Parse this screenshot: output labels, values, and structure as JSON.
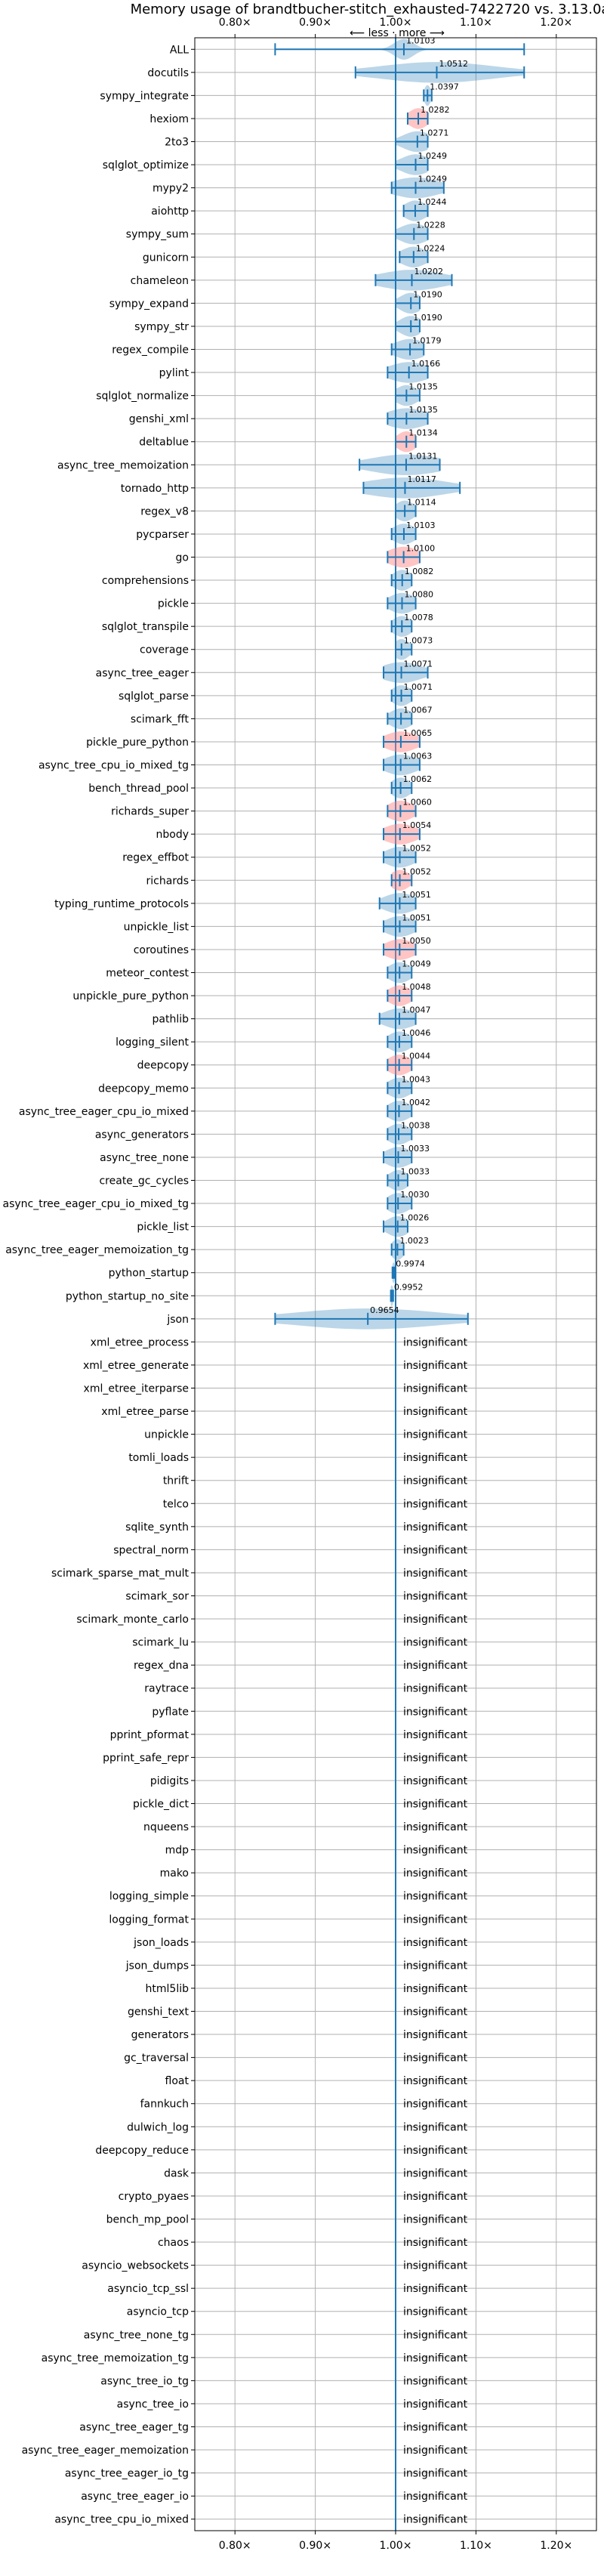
{
  "chart_data": {
    "type": "violin",
    "title": "Memory usage of brandtbucher-stitch_exhausted-7422720 vs. 3.13.0a",
    "direction_note": "⟵ less · more ⟶",
    "xlim": [
      0.75,
      1.25
    ],
    "xticks": [
      {
        "value": 0.8,
        "label": "0.80×"
      },
      {
        "value": 0.9,
        "label": "0.90×"
      },
      {
        "value": 1.0,
        "label": "1.00×"
      },
      {
        "value": 1.1,
        "label": "1.10×"
      },
      {
        "value": 1.2,
        "label": "1.20×"
      }
    ],
    "grid": true,
    "insignificant_text": "insignificant",
    "colors": {
      "normal": "#1f77b4",
      "highlight": "#ff7f7f",
      "grid": "#b0b0b0"
    },
    "rows": [
      {
        "name": "ALL",
        "value": 1.0103,
        "label": "1.0103",
        "min": 0.85,
        "max": 1.16,
        "spread": 0.012,
        "hl": false
      },
      {
        "name": "docutils",
        "value": 1.0512,
        "label": "1.0512",
        "min": 0.95,
        "max": 1.16,
        "spread": 0.07,
        "hl": false
      },
      {
        "name": "sympy_integrate",
        "value": 1.0397,
        "label": "1.0397",
        "min": 1.035,
        "max": 1.045,
        "spread": 0.004,
        "hl": false
      },
      {
        "name": "hexiom",
        "value": 1.0282,
        "label": "1.0282",
        "min": 1.015,
        "max": 1.04,
        "spread": 0.012,
        "hl": true
      },
      {
        "name": "2to3",
        "value": 1.0271,
        "label": "1.0271",
        "min": 1.0,
        "max": 1.04,
        "spread": 0.018,
        "hl": false
      },
      {
        "name": "sqlglot_optimize",
        "value": 1.0249,
        "label": "1.0249",
        "min": 1.0,
        "max": 1.04,
        "spread": 0.018,
        "hl": false
      },
      {
        "name": "mypy2",
        "value": 1.0249,
        "label": "1.0249",
        "min": 0.995,
        "max": 1.06,
        "spread": 0.03,
        "hl": false
      },
      {
        "name": "aiohttp",
        "value": 1.0244,
        "label": "1.0244",
        "min": 1.01,
        "max": 1.04,
        "spread": 0.014,
        "hl": false
      },
      {
        "name": "sympy_sum",
        "value": 1.0228,
        "label": "1.0228",
        "min": 1.0,
        "max": 1.04,
        "spread": 0.018,
        "hl": false
      },
      {
        "name": "gunicorn",
        "value": 1.0224,
        "label": "1.0224",
        "min": 1.005,
        "max": 1.04,
        "spread": 0.016,
        "hl": false
      },
      {
        "name": "chameleon",
        "value": 1.0202,
        "label": "1.0202",
        "min": 0.975,
        "max": 1.07,
        "spread": 0.04,
        "hl": false
      },
      {
        "name": "sympy_expand",
        "value": 1.019,
        "label": "1.0190",
        "min": 1.0,
        "max": 1.03,
        "spread": 0.014,
        "hl": false
      },
      {
        "name": "sympy_str",
        "value": 1.019,
        "label": "1.0190",
        "min": 1.0,
        "max": 1.03,
        "spread": 0.014,
        "hl": false
      },
      {
        "name": "regex_compile",
        "value": 1.0179,
        "label": "1.0179",
        "min": 0.995,
        "max": 1.035,
        "spread": 0.02,
        "hl": false
      },
      {
        "name": "pylint",
        "value": 1.0166,
        "label": "1.0166",
        "min": 0.99,
        "max": 1.04,
        "spread": 0.025,
        "hl": false
      },
      {
        "name": "sqlglot_normalize",
        "value": 1.0135,
        "label": "1.0135",
        "min": 1.0,
        "max": 1.03,
        "spread": 0.014,
        "hl": false
      },
      {
        "name": "genshi_xml",
        "value": 1.0135,
        "label": "1.0135",
        "min": 0.99,
        "max": 1.04,
        "spread": 0.025,
        "hl": false
      },
      {
        "name": "deltablue",
        "value": 1.0134,
        "label": "1.0134",
        "min": 1.0,
        "max": 1.025,
        "spread": 0.012,
        "hl": true
      },
      {
        "name": "async_tree_memoization",
        "value": 1.0131,
        "label": "1.0131",
        "min": 0.955,
        "max": 1.055,
        "spread": 0.045,
        "hl": false
      },
      {
        "name": "tornado_http",
        "value": 1.0117,
        "label": "1.0117",
        "min": 0.96,
        "max": 1.08,
        "spread": 0.05,
        "hl": false
      },
      {
        "name": "regex_v8",
        "value": 1.0114,
        "label": "1.0114",
        "min": 1.0,
        "max": 1.025,
        "spread": 0.012,
        "hl": false
      },
      {
        "name": "pycparser",
        "value": 1.0103,
        "label": "1.0103",
        "min": 0.995,
        "max": 1.025,
        "spread": 0.014,
        "hl": false
      },
      {
        "name": "go",
        "value": 1.01,
        "label": "1.0100",
        "min": 0.99,
        "max": 1.03,
        "spread": 0.02,
        "hl": true
      },
      {
        "name": "comprehensions",
        "value": 1.0082,
        "label": "1.0082",
        "min": 0.995,
        "max": 1.02,
        "spread": 0.012,
        "hl": false
      },
      {
        "name": "pickle",
        "value": 1.008,
        "label": "1.0080",
        "min": 0.99,
        "max": 1.025,
        "spread": 0.016,
        "hl": false
      },
      {
        "name": "sqlglot_transpile",
        "value": 1.0078,
        "label": "1.0078",
        "min": 0.995,
        "max": 1.02,
        "spread": 0.012,
        "hl": false
      },
      {
        "name": "coverage",
        "value": 1.0073,
        "label": "1.0073",
        "min": 1.0,
        "max": 1.02,
        "spread": 0.01,
        "hl": false
      },
      {
        "name": "async_tree_eager",
        "value": 1.0071,
        "label": "1.0071",
        "min": 0.985,
        "max": 1.04,
        "spread": 0.025,
        "hl": false
      },
      {
        "name": "sqlglot_parse",
        "value": 1.0071,
        "label": "1.0071",
        "min": 0.995,
        "max": 1.02,
        "spread": 0.012,
        "hl": false
      },
      {
        "name": "scimark_fft",
        "value": 1.0067,
        "label": "1.0067",
        "min": 0.99,
        "max": 1.02,
        "spread": 0.014,
        "hl": false
      },
      {
        "name": "pickle_pure_python",
        "value": 1.0065,
        "label": "1.0065",
        "min": 0.985,
        "max": 1.03,
        "spread": 0.02,
        "hl": true
      },
      {
        "name": "async_tree_cpu_io_mixed_tg",
        "value": 1.0063,
        "label": "1.0063",
        "min": 0.985,
        "max": 1.03,
        "spread": 0.02,
        "hl": false
      },
      {
        "name": "bench_thread_pool",
        "value": 1.0062,
        "label": "1.0062",
        "min": 0.995,
        "max": 1.02,
        "spread": 0.012,
        "hl": false
      },
      {
        "name": "richards_super",
        "value": 1.006,
        "label": "1.0060",
        "min": 0.99,
        "max": 1.025,
        "spread": 0.016,
        "hl": true
      },
      {
        "name": "nbody",
        "value": 1.0054,
        "label": "1.0054",
        "min": 0.985,
        "max": 1.03,
        "spread": 0.02,
        "hl": true
      },
      {
        "name": "regex_effbot",
        "value": 1.0052,
        "label": "1.0052",
        "min": 0.985,
        "max": 1.025,
        "spread": 0.018,
        "hl": false
      },
      {
        "name": "richards",
        "value": 1.0052,
        "label": "1.0052",
        "min": 0.995,
        "max": 1.02,
        "spread": 0.012,
        "hl": true
      },
      {
        "name": "typing_runtime_protocols",
        "value": 1.0051,
        "label": "1.0051",
        "min": 0.98,
        "max": 1.025,
        "spread": 0.02,
        "hl": false
      },
      {
        "name": "unpickle_list",
        "value": 1.0051,
        "label": "1.0051",
        "min": 0.985,
        "max": 1.025,
        "spread": 0.018,
        "hl": false
      },
      {
        "name": "coroutines",
        "value": 1.005,
        "label": "1.0050",
        "min": 0.985,
        "max": 1.025,
        "spread": 0.018,
        "hl": true
      },
      {
        "name": "meteor_contest",
        "value": 1.0049,
        "label": "1.0049",
        "min": 0.99,
        "max": 1.02,
        "spread": 0.014,
        "hl": false
      },
      {
        "name": "unpickle_pure_python",
        "value": 1.0048,
        "label": "1.0048",
        "min": 0.99,
        "max": 1.02,
        "spread": 0.014,
        "hl": true
      },
      {
        "name": "pathlib",
        "value": 1.0047,
        "label": "1.0047",
        "min": 0.98,
        "max": 1.025,
        "spread": 0.02,
        "hl": false
      },
      {
        "name": "logging_silent",
        "value": 1.0046,
        "label": "1.0046",
        "min": 0.99,
        "max": 1.02,
        "spread": 0.014,
        "hl": false
      },
      {
        "name": "deepcopy",
        "value": 1.0044,
        "label": "1.0044",
        "min": 0.99,
        "max": 1.02,
        "spread": 0.014,
        "hl": true
      },
      {
        "name": "deepcopy_memo",
        "value": 1.0043,
        "label": "1.0043",
        "min": 0.99,
        "max": 1.02,
        "spread": 0.014,
        "hl": false
      },
      {
        "name": "async_tree_eager_cpu_io_mixed",
        "value": 1.0042,
        "label": "1.0042",
        "min": 0.99,
        "max": 1.02,
        "spread": 0.014,
        "hl": false
      },
      {
        "name": "async_generators",
        "value": 1.0038,
        "label": "1.0038",
        "min": 0.99,
        "max": 1.02,
        "spread": 0.014,
        "hl": false
      },
      {
        "name": "async_tree_none",
        "value": 1.0033,
        "label": "1.0033",
        "min": 0.985,
        "max": 1.02,
        "spread": 0.016,
        "hl": false
      },
      {
        "name": "create_gc_cycles",
        "value": 1.0033,
        "label": "1.0033",
        "min": 0.99,
        "max": 1.015,
        "spread": 0.012,
        "hl": false
      },
      {
        "name": "async_tree_eager_cpu_io_mixed_tg",
        "value": 1.003,
        "label": "1.0030",
        "min": 0.99,
        "max": 1.02,
        "spread": 0.014,
        "hl": false
      },
      {
        "name": "pickle_list",
        "value": 1.0026,
        "label": "1.0026",
        "min": 0.985,
        "max": 1.015,
        "spread": 0.014,
        "hl": false
      },
      {
        "name": "async_tree_eager_memoization_tg",
        "value": 1.0023,
        "label": "1.0023",
        "min": 0.995,
        "max": 1.01,
        "spread": 0.008,
        "hl": false
      },
      {
        "name": "python_startup",
        "value": 0.9974,
        "label": "0.9974",
        "min": 0.996,
        "max": 0.999,
        "spread": 0.002,
        "hl": false
      },
      {
        "name": "python_startup_no_site",
        "value": 0.9952,
        "label": "0.9952",
        "min": 0.994,
        "max": 0.997,
        "spread": 0.002,
        "hl": false
      },
      {
        "name": "json",
        "value": 0.9654,
        "label": "0.9654",
        "min": 0.85,
        "max": 1.09,
        "spread": 0.09,
        "hl": false
      },
      {
        "name": "xml_etree_process",
        "insignificant": true
      },
      {
        "name": "xml_etree_generate",
        "insignificant": true
      },
      {
        "name": "xml_etree_iterparse",
        "insignificant": true
      },
      {
        "name": "xml_etree_parse",
        "insignificant": true
      },
      {
        "name": "unpickle",
        "insignificant": true
      },
      {
        "name": "tomli_loads",
        "insignificant": true
      },
      {
        "name": "thrift",
        "insignificant": true
      },
      {
        "name": "telco",
        "insignificant": true
      },
      {
        "name": "sqlite_synth",
        "insignificant": true
      },
      {
        "name": "spectral_norm",
        "insignificant": true
      },
      {
        "name": "scimark_sparse_mat_mult",
        "insignificant": true
      },
      {
        "name": "scimark_sor",
        "insignificant": true
      },
      {
        "name": "scimark_monte_carlo",
        "insignificant": true
      },
      {
        "name": "scimark_lu",
        "insignificant": true
      },
      {
        "name": "regex_dna",
        "insignificant": true
      },
      {
        "name": "raytrace",
        "insignificant": true
      },
      {
        "name": "pyflate",
        "insignificant": true
      },
      {
        "name": "pprint_pformat",
        "insignificant": true
      },
      {
        "name": "pprint_safe_repr",
        "insignificant": true
      },
      {
        "name": "pidigits",
        "insignificant": true
      },
      {
        "name": "pickle_dict",
        "insignificant": true
      },
      {
        "name": "nqueens",
        "insignificant": true
      },
      {
        "name": "mdp",
        "insignificant": true
      },
      {
        "name": "mako",
        "insignificant": true
      },
      {
        "name": "logging_simple",
        "insignificant": true
      },
      {
        "name": "logging_format",
        "insignificant": true
      },
      {
        "name": "json_loads",
        "insignificant": true
      },
      {
        "name": "json_dumps",
        "insignificant": true
      },
      {
        "name": "html5lib",
        "insignificant": true
      },
      {
        "name": "genshi_text",
        "insignificant": true
      },
      {
        "name": "generators",
        "insignificant": true
      },
      {
        "name": "gc_traversal",
        "insignificant": true
      },
      {
        "name": "float",
        "insignificant": true
      },
      {
        "name": "fannkuch",
        "insignificant": true
      },
      {
        "name": "dulwich_log",
        "insignificant": true
      },
      {
        "name": "deepcopy_reduce",
        "insignificant": true
      },
      {
        "name": "dask",
        "insignificant": true
      },
      {
        "name": "crypto_pyaes",
        "insignificant": true
      },
      {
        "name": "bench_mp_pool",
        "insignificant": true
      },
      {
        "name": "chaos",
        "insignificant": true
      },
      {
        "name": "asyncio_websockets",
        "insignificant": true
      },
      {
        "name": "asyncio_tcp_ssl",
        "insignificant": true
      },
      {
        "name": "asyncio_tcp",
        "insignificant": true
      },
      {
        "name": "async_tree_none_tg",
        "insignificant": true
      },
      {
        "name": "async_tree_memoization_tg",
        "insignificant": true
      },
      {
        "name": "async_tree_io_tg",
        "insignificant": true
      },
      {
        "name": "async_tree_io",
        "insignificant": true
      },
      {
        "name": "async_tree_eager_tg",
        "insignificant": true
      },
      {
        "name": "async_tree_eager_memoization",
        "insignificant": true
      },
      {
        "name": "async_tree_eager_io_tg",
        "insignificant": true
      },
      {
        "name": "async_tree_eager_io",
        "insignificant": true
      },
      {
        "name": "async_tree_cpu_io_mixed",
        "insignificant": true
      }
    ]
  }
}
